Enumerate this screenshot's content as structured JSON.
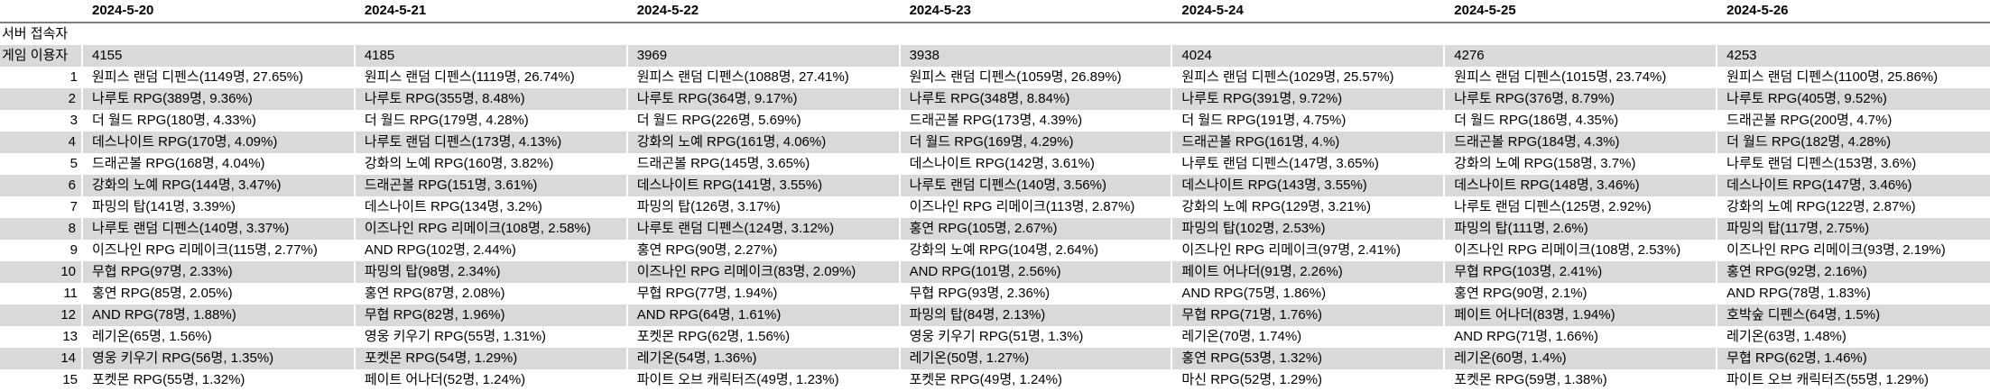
{
  "colors": {
    "stripe": "#d9d9d9",
    "header_underline": "#7f7f7f",
    "text": "#000000",
    "background": "#ffffff"
  },
  "table": {
    "row_labels": {
      "server": "서버 접속자",
      "game_users": "게임 이용자"
    },
    "ranks": [
      "1",
      "2",
      "3",
      "4",
      "5",
      "6",
      "7",
      "8",
      "9",
      "10",
      "11",
      "12",
      "13",
      "14",
      "15"
    ],
    "columns": [
      {
        "date": "2024-5-20",
        "game_users": "4155",
        "rankings": [
          "원피스 랜덤 디펜스(1149명, 27.65%)",
          "나루토 RPG(389명, 9.36%)",
          "더 월드 RPG(180명, 4.33%)",
          "데스나이트 RPG(170명, 4.09%)",
          "드래곤볼 RPG(168명, 4.04%)",
          "강화의 노예 RPG(144명, 3.47%)",
          "파밍의 탑(141명, 3.39%)",
          "나루토 랜덤 디펜스(140명, 3.37%)",
          "이즈나인 RPG 리메이크(115명, 2.77%)",
          "무협 RPG(97명, 2.33%)",
          "홍연 RPG(85명, 2.05%)",
          "AND RPG(78명, 1.88%)",
          "레기온(65명, 1.56%)",
          "영웅 키우기 RPG(56명, 1.35%)",
          "포켓몬 RPG(55명, 1.32%)"
        ]
      },
      {
        "date": "2024-5-21",
        "game_users": "4185",
        "rankings": [
          "원피스 랜덤 디펜스(1119명, 26.74%)",
          "나루토 RPG(355명, 8.48%)",
          "더 월드 RPG(179명, 4.28%)",
          "나루토 랜덤 디펜스(173명, 4.13%)",
          "강화의 노예 RPG(160명, 3.82%)",
          "드래곤볼 RPG(151명, 3.61%)",
          "데스나이트 RPG(134명, 3.2%)",
          "이즈나인 RPG 리메이크(108명, 2.58%)",
          "AND RPG(102명, 2.44%)",
          "파밍의 탑(98명, 2.34%)",
          "홍연 RPG(87명, 2.08%)",
          "무협 RPG(82명, 1.96%)",
          "영웅 키우기 RPG(55명, 1.31%)",
          "포켓몬 RPG(54명, 1.29%)",
          "페이트 어나더(52명, 1.24%)"
        ]
      },
      {
        "date": "2024-5-22",
        "game_users": "3969",
        "rankings": [
          "원피스 랜덤 디펜스(1088명, 27.41%)",
          "나루토 RPG(364명, 9.17%)",
          "더 월드 RPG(226명, 5.69%)",
          "강화의 노예 RPG(161명, 4.06%)",
          "드래곤볼 RPG(145명, 3.65%)",
          "데스나이트 RPG(141명, 3.55%)",
          "파밍의 탑(126명, 3.17%)",
          "나루토 랜덤 디펜스(124명, 3.12%)",
          "홍연 RPG(90명, 2.27%)",
          "이즈나인 RPG 리메이크(83명, 2.09%)",
          "무협 RPG(77명, 1.94%)",
          "AND RPG(64명, 1.61%)",
          "포켓몬 RPG(62명, 1.56%)",
          "레기온(54명, 1.36%)",
          "파이트 오브 캐릭터즈(49명, 1.23%)"
        ]
      },
      {
        "date": "2024-5-23",
        "game_users": "3938",
        "rankings": [
          "원피스 랜덤 디펜스(1059명, 26.89%)",
          "나루토 RPG(348명, 8.84%)",
          "드래곤볼 RPG(173명, 4.39%)",
          "더 월드 RPG(169명, 4.29%)",
          "데스나이트 RPG(142명, 3.61%)",
          "나루토 랜덤 디펜스(140명, 3.56%)",
          "이즈나인 RPG 리메이크(113명, 2.87%)",
          "홍연 RPG(105명, 2.67%)",
          "강화의 노예 RPG(104명, 2.64%)",
          "AND RPG(101명, 2.56%)",
          "무협 RPG(93명, 2.36%)",
          "파밍의 탑(84명, 2.13%)",
          "영웅 키우기 RPG(51명, 1.3%)",
          "레기온(50명, 1.27%)",
          "포켓몬 RPG(49명, 1.24%)"
        ]
      },
      {
        "date": "2024-5-24",
        "game_users": "4024",
        "rankings": [
          "원피스 랜덤 디펜스(1029명, 25.57%)",
          "나루토 RPG(391명, 9.72%)",
          "더 월드 RPG(191명, 4.75%)",
          "드래곤볼 RPG(161명, 4.%)",
          "나루토 랜덤 디펜스(147명, 3.65%)",
          "데스나이트 RPG(143명, 3.55%)",
          "강화의 노예 RPG(129명, 3.21%)",
          "파밍의 탑(102명, 2.53%)",
          "이즈나인 RPG 리메이크(97명, 2.41%)",
          "페이트 어나더(91명, 2.26%)",
          "AND RPG(75명, 1.86%)",
          "무협 RPG(71명, 1.76%)",
          "레기온(70명, 1.74%)",
          "홍연 RPG(53명, 1.32%)",
          "마신 RPG(52명, 1.29%)"
        ]
      },
      {
        "date": "2024-5-25",
        "game_users": "4276",
        "rankings": [
          "원피스 랜덤 디펜스(1015명, 23.74%)",
          "나루토 RPG(376명, 8.79%)",
          "더 월드 RPG(186명, 4.35%)",
          "드래곤볼 RPG(184명, 4.3%)",
          "강화의 노예 RPG(158명, 3.7%)",
          "데스나이트 RPG(148명, 3.46%)",
          "나루토 랜덤 디펜스(125명, 2.92%)",
          "파밍의 탑(111명, 2.6%)",
          "이즈나인 RPG 리메이크(108명, 2.53%)",
          "무협 RPG(103명, 2.41%)",
          "홍연 RPG(90명, 2.1%)",
          "페이트 어나더(83명, 1.94%)",
          "AND RPG(71명, 1.66%)",
          "레기온(60명, 1.4%)",
          "포켓몬 RPG(59명, 1.38%)"
        ]
      },
      {
        "date": "2024-5-26",
        "game_users": "4253",
        "rankings": [
          "원피스 랜덤 디펜스(1100명, 25.86%)",
          "나루토 RPG(405명, 9.52%)",
          "드래곤볼 RPG(200명, 4.7%)",
          "더 월드 RPG(182명, 4.28%)",
          "나루토 랜덤 디펜스(153명, 3.6%)",
          "데스나이트 RPG(147명, 3.46%)",
          "강화의 노예 RPG(122명, 2.87%)",
          "파밍의 탑(117명, 2.75%)",
          "이즈나인 RPG 리메이크(93명, 2.19%)",
          "홍연 RPG(92명, 2.16%)",
          "AND RPG(78명, 1.83%)",
          "호박숲 디펜스(64명, 1.5%)",
          "레기온(63명, 1.48%)",
          "무협 RPG(62명, 1.46%)",
          "파이트 오브 캐릭터즈(55명, 1.29%)"
        ]
      }
    ]
  }
}
